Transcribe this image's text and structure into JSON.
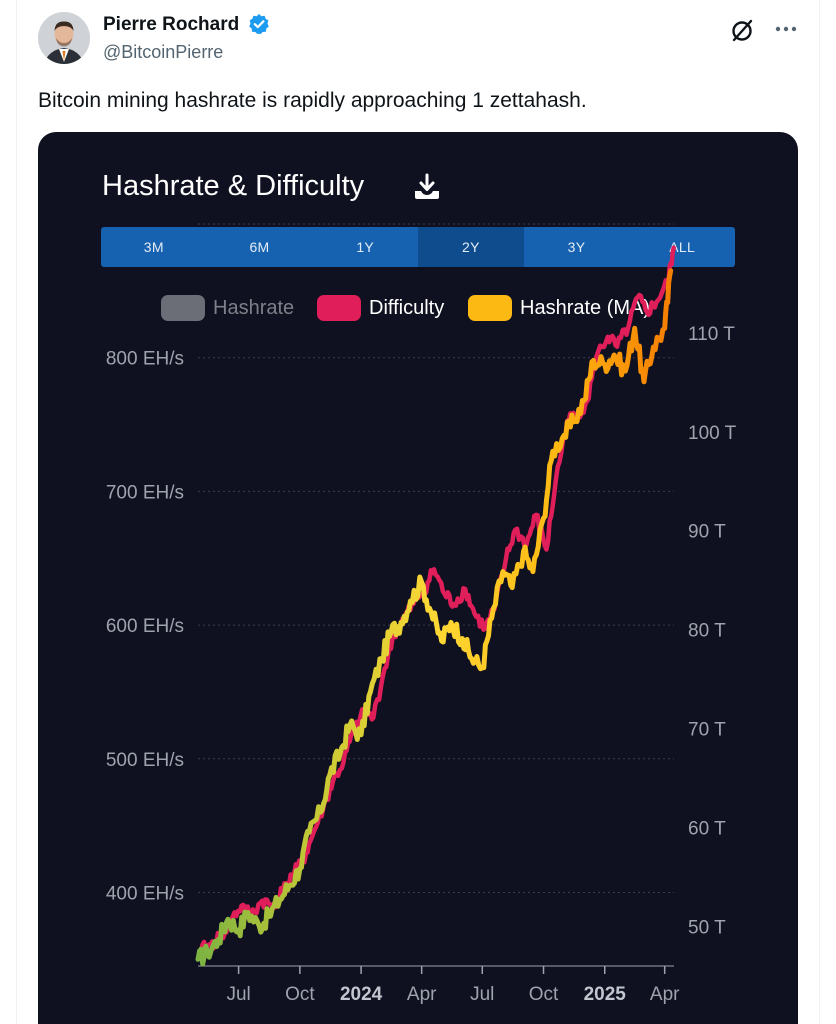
{
  "author": {
    "name": "Pierre Rochard",
    "handle": "@BitcoinPierre",
    "verified": true,
    "verified_color": "#1d9bf0"
  },
  "icons": {
    "grok": "grok-icon",
    "more": "more-options-icon",
    "download": "download-icon",
    "verified": "verified-badge-icon"
  },
  "tweet": {
    "text": "Bitcoin mining hashrate is rapidly approaching 1 zettahash."
  },
  "media": {
    "title": "Hashrate & Difficulty",
    "ranges": [
      {
        "label": "3M",
        "active": false
      },
      {
        "label": "6M",
        "active": false
      },
      {
        "label": "1Y",
        "active": false
      },
      {
        "label": "2Y",
        "active": true
      },
      {
        "label": "3Y",
        "active": false
      },
      {
        "label": "ALL",
        "active": false
      }
    ],
    "legend": [
      {
        "label": "Hashrate",
        "color": "#6b6e77",
        "enabled": false
      },
      {
        "label": "Difficulty",
        "color": "#e01e5a",
        "enabled": true
      },
      {
        "label": "Hashrate (MA)",
        "color": "#fdb913",
        "enabled": true
      }
    ]
  },
  "chart_data": {
    "type": "line",
    "title": "Hashrate & Difficulty",
    "x_ticks": [
      {
        "label": "Jul",
        "bold": false
      },
      {
        "label": "Oct",
        "bold": false
      },
      {
        "label": "2024",
        "bold": true
      },
      {
        "label": "Apr",
        "bold": false
      },
      {
        "label": "Jul",
        "bold": false
      },
      {
        "label": "Oct",
        "bold": false
      },
      {
        "label": "2025",
        "bold": true
      },
      {
        "label": "Apr",
        "bold": false
      }
    ],
    "x_range": [
      "2023-05-01",
      "2025-04-15"
    ],
    "y_left": {
      "unit": "EH/s",
      "ticks": [
        "400 EH/s",
        "500 EH/s",
        "600 EH/s",
        "700 EH/s",
        "800 EH/s"
      ],
      "range": [
        345,
        900
      ]
    },
    "y_right": {
      "unit": "T",
      "ticks": [
        "50 T",
        "60 T",
        "70 T",
        "80 T",
        "90 T",
        "100 T",
        "110 T"
      ],
      "range": [
        46,
        121
      ]
    },
    "grid": true,
    "series": [
      {
        "name": "Difficulty",
        "axis": "right",
        "color": "#e01e5a",
        "points": [
          [
            "2023-05-01",
            48.0
          ],
          [
            "2023-05-15",
            48.5
          ],
          [
            "2023-06-01",
            49.5
          ],
          [
            "2023-06-15",
            51.0
          ],
          [
            "2023-07-01",
            52.5
          ],
          [
            "2023-07-15",
            51.5
          ],
          [
            "2023-08-01",
            53.0
          ],
          [
            "2023-08-15",
            52.5
          ],
          [
            "2023-09-01",
            54.0
          ],
          [
            "2023-09-15",
            55.5
          ],
          [
            "2023-10-01",
            57.0
          ],
          [
            "2023-10-15",
            59.5
          ],
          [
            "2023-11-01",
            62.5
          ],
          [
            "2023-11-15",
            65.0
          ],
          [
            "2023-12-01",
            67.0
          ],
          [
            "2023-12-15",
            70.0
          ],
          [
            "2024-01-01",
            72.0
          ],
          [
            "2024-01-15",
            71.5
          ],
          [
            "2024-02-01",
            76.5
          ],
          [
            "2024-02-15",
            80.0
          ],
          [
            "2024-03-01",
            81.5
          ],
          [
            "2024-03-15",
            83.0
          ],
          [
            "2024-04-01",
            84.5
          ],
          [
            "2024-04-15",
            86.5
          ],
          [
            "2024-05-01",
            84.0
          ],
          [
            "2024-05-15",
            83.0
          ],
          [
            "2024-06-01",
            84.5
          ],
          [
            "2024-06-15",
            82.0
          ],
          [
            "2024-07-01",
            80.5
          ],
          [
            "2024-07-15",
            82.5
          ],
          [
            "2024-08-01",
            87.5
          ],
          [
            "2024-08-15",
            90.5
          ],
          [
            "2024-09-01",
            89.0
          ],
          [
            "2024-09-15",
            92.0
          ],
          [
            "2024-10-01",
            88.5
          ],
          [
            "2024-10-15",
            95.5
          ],
          [
            "2024-11-01",
            101.5
          ],
          [
            "2024-11-15",
            102.0
          ],
          [
            "2024-12-01",
            103.5
          ],
          [
            "2024-12-15",
            108.0
          ],
          [
            "2025-01-01",
            110.0
          ],
          [
            "2025-01-15",
            109.0
          ],
          [
            "2025-02-01",
            111.0
          ],
          [
            "2025-02-15",
            114.0
          ],
          [
            "2025-03-01",
            112.5
          ],
          [
            "2025-03-15",
            113.5
          ],
          [
            "2025-04-01",
            115.5
          ],
          [
            "2025-04-10",
            119.0
          ]
        ]
      },
      {
        "name": "Hashrate (MA)",
        "axis": "left",
        "color": "#fdb913",
        "color_scale": [
          "#7cb342",
          "#c6c935",
          "#fdd835",
          "#fdb913",
          "#f57c00"
        ],
        "points": [
          [
            "2023-05-01",
            350
          ],
          [
            "2023-05-15",
            355
          ],
          [
            "2023-06-01",
            365
          ],
          [
            "2023-06-15",
            380
          ],
          [
            "2023-07-01",
            372
          ],
          [
            "2023-07-15",
            385
          ],
          [
            "2023-08-01",
            375
          ],
          [
            "2023-08-15",
            382
          ],
          [
            "2023-09-01",
            395
          ],
          [
            "2023-09-15",
            405
          ],
          [
            "2023-10-01",
            418
          ],
          [
            "2023-10-15",
            445
          ],
          [
            "2023-11-01",
            460
          ],
          [
            "2023-11-15",
            488
          ],
          [
            "2023-12-01",
            505
          ],
          [
            "2023-12-15",
            525
          ],
          [
            "2024-01-01",
            518
          ],
          [
            "2024-01-15",
            550
          ],
          [
            "2024-02-01",
            575
          ],
          [
            "2024-02-15",
            595
          ],
          [
            "2024-03-01",
            602
          ],
          [
            "2024-03-15",
            618
          ],
          [
            "2024-04-01",
            632
          ],
          [
            "2024-04-15",
            610
          ],
          [
            "2024-05-01",
            588
          ],
          [
            "2024-05-15",
            602
          ],
          [
            "2024-06-01",
            590
          ],
          [
            "2024-06-15",
            575
          ],
          [
            "2024-07-01",
            568
          ],
          [
            "2024-07-15",
            605
          ],
          [
            "2024-08-01",
            640
          ],
          [
            "2024-08-15",
            628
          ],
          [
            "2024-09-01",
            655
          ],
          [
            "2024-09-15",
            640
          ],
          [
            "2024-10-01",
            680
          ],
          [
            "2024-10-15",
            730
          ],
          [
            "2024-11-01",
            742
          ],
          [
            "2024-11-15",
            752
          ],
          [
            "2024-12-01",
            768
          ],
          [
            "2024-12-15",
            798
          ],
          [
            "2025-01-01",
            795
          ],
          [
            "2025-01-15",
            802
          ],
          [
            "2025-02-01",
            790
          ],
          [
            "2025-02-15",
            822
          ],
          [
            "2025-03-01",
            782
          ],
          [
            "2025-03-15",
            808
          ],
          [
            "2025-04-01",
            822
          ],
          [
            "2025-04-10",
            865
          ]
        ]
      }
    ]
  }
}
